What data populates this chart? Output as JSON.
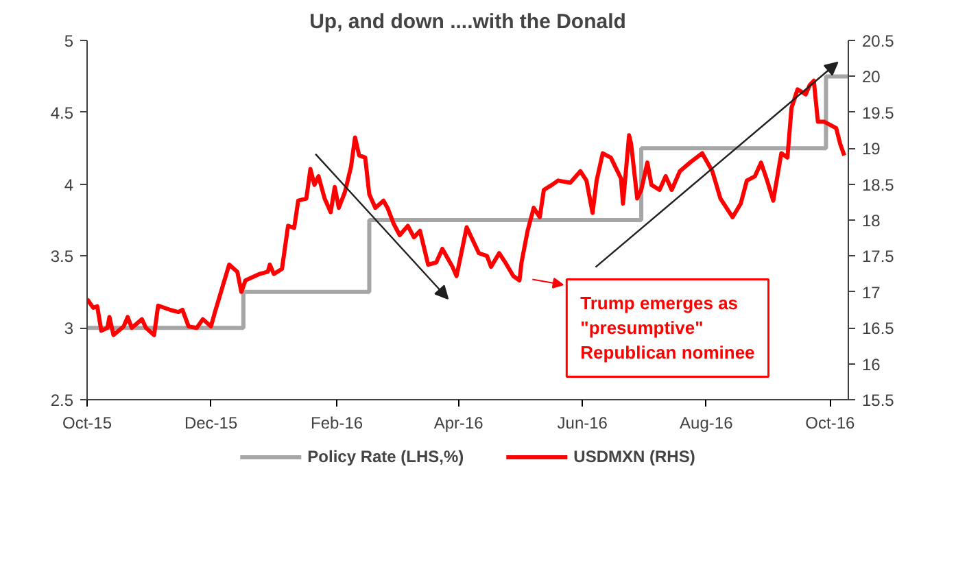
{
  "chart_data": {
    "type": "line",
    "title": "Up, and down ....with the Donald",
    "xlim": [
      "2015-10-01",
      "2016-10-10"
    ],
    "xticks": [
      {
        "value": "2015-10-01",
        "label": "Oct-15"
      },
      {
        "value": "2015-12-01",
        "label": "Dec-15"
      },
      {
        "value": "2016-02-01",
        "label": "Feb-16"
      },
      {
        "value": "2016-04-01",
        "label": "Apr-16"
      },
      {
        "value": "2016-06-01",
        "label": "Jun-16"
      },
      {
        "value": "2016-08-01",
        "label": "Aug-16"
      },
      {
        "value": "2016-10-01",
        "label": "Oct-16"
      }
    ],
    "ylim": [
      2.5,
      5
    ],
    "yticks": [
      2.5,
      3,
      3.5,
      4,
      4.5,
      5
    ],
    "y2lim": [
      15.5,
      20.5
    ],
    "y2ticks": [
      15.5,
      16,
      16.5,
      17,
      17.5,
      18,
      18.5,
      19,
      19.5,
      20,
      20.5
    ],
    "grid": false,
    "legend": "bottom",
    "annotations": [
      "Trump emerges as\n\"presumptive\"\nRepublican nominee"
    ],
    "series": [
      {
        "name": "Policy Rate (LHS,%)",
        "type": "step",
        "color": "#a6a6a6",
        "x": [
          "2015-10-01",
          "2015-12-17",
          "2016-02-17",
          "2016-06-30",
          "2016-09-29",
          "2016-10-10"
        ],
        "values": [
          3,
          3.25,
          3.75,
          4.25,
          4.75,
          4.75
        ]
      },
      {
        "name": "USDMXN (RHS)",
        "axis": "y2",
        "color": "#ff0000",
        "x": [
          "2015-10-01",
          "2015-10-04",
          "2015-10-06",
          "2015-10-08",
          "2015-10-11",
          "2015-10-12",
          "2015-10-14",
          "2015-10-19",
          "2015-10-21",
          "2015-10-23",
          "2015-10-28",
          "2015-10-30",
          "2015-11-03",
          "2015-11-05",
          "2015-11-11",
          "2015-11-15",
          "2015-11-17",
          "2015-11-20",
          "2015-11-24",
          "2015-11-27",
          "2015-12-01",
          "2015-12-03",
          "2015-12-07",
          "2015-12-10",
          "2015-12-14",
          "2015-12-16",
          "2015-12-18",
          "2015-12-25",
          "2015-12-29",
          "2015-12-30",
          "2016-01-01",
          "2016-01-05",
          "2016-01-08",
          "2016-01-11",
          "2016-01-13",
          "2016-01-17",
          "2016-01-19",
          "2016-01-21",
          "2016-01-23",
          "2016-01-26",
          "2016-01-29",
          "2016-01-31",
          "2016-02-02",
          "2016-02-05",
          "2016-02-08",
          "2016-02-10",
          "2016-02-12",
          "2016-02-15",
          "2016-02-17",
          "2016-02-20",
          "2016-02-24",
          "2016-02-26",
          "2016-02-29",
          "2016-03-03",
          "2016-03-07",
          "2016-03-10",
          "2016-03-13",
          "2016-03-17",
          "2016-03-21",
          "2016-03-24",
          "2016-03-29",
          "2016-03-31",
          "2016-04-05",
          "2016-04-11",
          "2016-04-15",
          "2016-04-17",
          "2016-04-21",
          "2016-04-24",
          "2016-04-28",
          "2016-05-01",
          "2016-05-02",
          "2016-05-05",
          "2016-05-08",
          "2016-05-11",
          "2016-05-13",
          "2016-05-17",
          "2016-05-20",
          "2016-05-26",
          "2016-05-31",
          "2016-06-03",
          "2016-06-06",
          "2016-06-08",
          "2016-06-11",
          "2016-06-15",
          "2016-06-20",
          "2016-06-21",
          "2016-06-24",
          "2016-06-25",
          "2016-06-28",
          "2016-06-30",
          "2016-07-03",
          "2016-07-05",
          "2016-07-09",
          "2016-07-12",
          "2016-07-15",
          "2016-07-19",
          "2016-07-24",
          "2016-07-30",
          "2016-08-04",
          "2016-08-08",
          "2016-08-14",
          "2016-08-18",
          "2016-08-21",
          "2016-08-25",
          "2016-08-28",
          "2016-08-31",
          "2016-09-03",
          "2016-09-07",
          "2016-09-10",
          "2016-09-12",
          "2016-09-15",
          "2016-09-19",
          "2016-09-21",
          "2016-09-23",
          "2016-09-25",
          "2016-09-28",
          "2016-10-04",
          "2016-10-06",
          "2016-10-08"
        ],
        "values": [
          16.9,
          16.78,
          16.8,
          16.46,
          16.5,
          16.65,
          16.4,
          16.52,
          16.65,
          16.5,
          16.62,
          16.5,
          16.4,
          16.81,
          16.75,
          16.72,
          16.75,
          16.52,
          16.5,
          16.62,
          16.52,
          16.72,
          17.1,
          17.38,
          17.28,
          17.0,
          17.16,
          17.25,
          17.28,
          17.38,
          17.25,
          17.32,
          17.92,
          17.89,
          18.27,
          18.3,
          18.71,
          18.49,
          18.61,
          18.3,
          18.11,
          18.46,
          18.17,
          18.39,
          18.74,
          19.15,
          18.9,
          18.87,
          18.36,
          18.17,
          18.27,
          18.17,
          17.95,
          17.79,
          17.92,
          17.76,
          17.85,
          17.38,
          17.41,
          17.6,
          17.35,
          17.22,
          17.9,
          17.54,
          17.5,
          17.35,
          17.54,
          17.41,
          17.22,
          17.16,
          17.41,
          17.85,
          18.17,
          18.04,
          18.42,
          18.49,
          18.55,
          18.52,
          18.68,
          18.55,
          18.1,
          18.55,
          18.93,
          18.87,
          18.58,
          18.23,
          19.18,
          19.06,
          18.3,
          18.42,
          18.8,
          18.49,
          18.42,
          18.61,
          18.42,
          18.68,
          18.8,
          18.93,
          18.68,
          18.3,
          18.04,
          18.23,
          18.55,
          18.61,
          18.8,
          18.55,
          18.27,
          18.93,
          18.87,
          19.56,
          19.82,
          19.75,
          19.88,
          19.94,
          19.37,
          19.37,
          19.28,
          19.06,
          18.9
        ]
      }
    ]
  }
}
